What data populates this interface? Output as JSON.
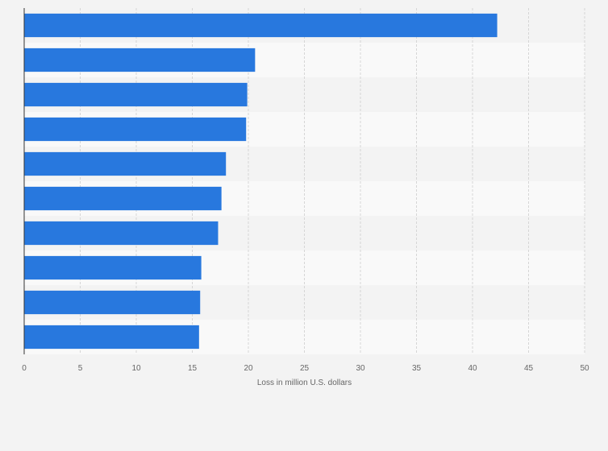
{
  "chart_data": {
    "type": "bar",
    "orientation": "horizontal",
    "categories": [
      "",
      "",
      "",
      "",
      "",
      "",
      "",
      "",
      "",
      ""
    ],
    "values": [
      42.2,
      20.6,
      19.9,
      19.8,
      18.0,
      17.6,
      17.3,
      15.8,
      15.7,
      15.6
    ],
    "xlabel": "Loss in million U.S. dollars",
    "ylabel": "",
    "xlim": [
      0,
      50
    ],
    "xticks": [
      0,
      5,
      10,
      15,
      20,
      25,
      30,
      35,
      40,
      45,
      50
    ],
    "grid": "vertical dashed",
    "bar_color": "#2878de",
    "band_colors": [
      "#f3f3f3",
      "#f9f9f9"
    ]
  }
}
